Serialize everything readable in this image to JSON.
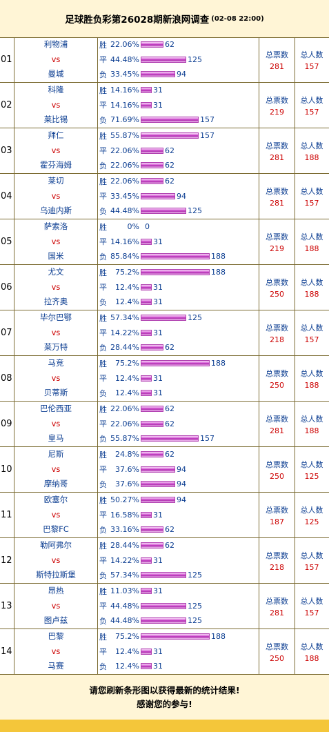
{
  "header": {
    "title": "足球胜负彩第26028期新浪网调查",
    "date": "(02-08 22:00)"
  },
  "labels": {
    "win": "胜",
    "draw": "平",
    "lose": "负",
    "vs": "vs",
    "total_votes": "总票数",
    "total_people": "总人数"
  },
  "matches": [
    {
      "idx": "01",
      "home": "利物浦",
      "away": "曼城",
      "win_pct": "22.06%",
      "win": 62,
      "draw_pct": "44.48%",
      "draw": 125,
      "lose_pct": "33.45%",
      "lose": 94,
      "votes": "281",
      "people": "157"
    },
    {
      "idx": "02",
      "home": "科隆",
      "away": "莱比锡",
      "win_pct": "14.16%",
      "win": 31,
      "draw_pct": "14.16%",
      "draw": 31,
      "lose_pct": "71.69%",
      "lose": 157,
      "votes": "219",
      "people": "157"
    },
    {
      "idx": "03",
      "home": "拜仁",
      "away": "霍芬海姆",
      "win_pct": "55.87%",
      "win": 157,
      "draw_pct": "22.06%",
      "draw": 62,
      "lose_pct": "22.06%",
      "lose": 62,
      "votes": "281",
      "people": "188"
    },
    {
      "idx": "04",
      "home": "莱切",
      "away": "乌迪内斯",
      "win_pct": "22.06%",
      "win": 62,
      "draw_pct": "33.45%",
      "draw": 94,
      "lose_pct": "44.48%",
      "lose": 125,
      "votes": "281",
      "people": "157"
    },
    {
      "idx": "05",
      "home": "萨索洛",
      "away": "国米",
      "win_pct": "0%",
      "win": 0,
      "draw_pct": "14.16%",
      "draw": 31,
      "lose_pct": "85.84%",
      "lose": 188,
      "votes": "219",
      "people": "188"
    },
    {
      "idx": "06",
      "home": "尤文",
      "away": "拉齐奥",
      "win_pct": "75.2%",
      "win": 188,
      "draw_pct": "12.4%",
      "draw": 31,
      "lose_pct": "12.4%",
      "lose": 31,
      "votes": "250",
      "people": "188"
    },
    {
      "idx": "07",
      "home": "毕尔巴鄂",
      "away": "莱万特",
      "win_pct": "57.34%",
      "win": 125,
      "draw_pct": "14.22%",
      "draw": 31,
      "lose_pct": "28.44%",
      "lose": 62,
      "votes": "218",
      "people": "157"
    },
    {
      "idx": "08",
      "home": "马竞",
      "away": "贝蒂斯",
      "win_pct": "75.2%",
      "win": 188,
      "draw_pct": "12.4%",
      "draw": 31,
      "lose_pct": "12.4%",
      "lose": 31,
      "votes": "250",
      "people": "188"
    },
    {
      "idx": "09",
      "home": "巴伦西亚",
      "away": "皇马",
      "win_pct": "22.06%",
      "win": 62,
      "draw_pct": "22.06%",
      "draw": 62,
      "lose_pct": "55.87%",
      "lose": 157,
      "votes": "281",
      "people": "188"
    },
    {
      "idx": "10",
      "home": "尼斯",
      "away": "摩纳哥",
      "win_pct": "24.8%",
      "win": 62,
      "draw_pct": "37.6%",
      "draw": 94,
      "lose_pct": "37.6%",
      "lose": 94,
      "votes": "250",
      "people": "125"
    },
    {
      "idx": "11",
      "home": "欧塞尔",
      "away": "巴黎FC",
      "win_pct": "50.27%",
      "win": 94,
      "draw_pct": "16.58%",
      "draw": 31,
      "lose_pct": "33.16%",
      "lose": 62,
      "votes": "187",
      "people": "125"
    },
    {
      "idx": "12",
      "home": "勒阿弗尔",
      "away": "斯特拉斯堡",
      "win_pct": "28.44%",
      "win": 62,
      "draw_pct": "14.22%",
      "draw": 31,
      "lose_pct": "57.34%",
      "lose": 125,
      "votes": "218",
      "people": "157"
    },
    {
      "idx": "13",
      "home": "昂热",
      "away": "图卢兹",
      "win_pct": "11.03%",
      "win": 31,
      "draw_pct": "44.48%",
      "draw": 125,
      "lose_pct": "44.48%",
      "lose": 125,
      "votes": "281",
      "people": "157"
    },
    {
      "idx": "14",
      "home": "巴黎",
      "away": "马赛",
      "win_pct": "75.2%",
      "win": 188,
      "draw_pct": "12.4%",
      "draw": 31,
      "lose_pct": "12.4%",
      "lose": 31,
      "votes": "250",
      "people": "188"
    }
  ],
  "footer": {
    "line1": "请您刷新条形图以获得最新的统计结果!",
    "line2": "感谢您的参与!"
  },
  "colors": {
    "header_bg": "#fff5d6",
    "bar": "#d65fd6",
    "team": "#0b3d91",
    "vs": "#cc0000",
    "bottom_bar": "#f4c63a"
  }
}
